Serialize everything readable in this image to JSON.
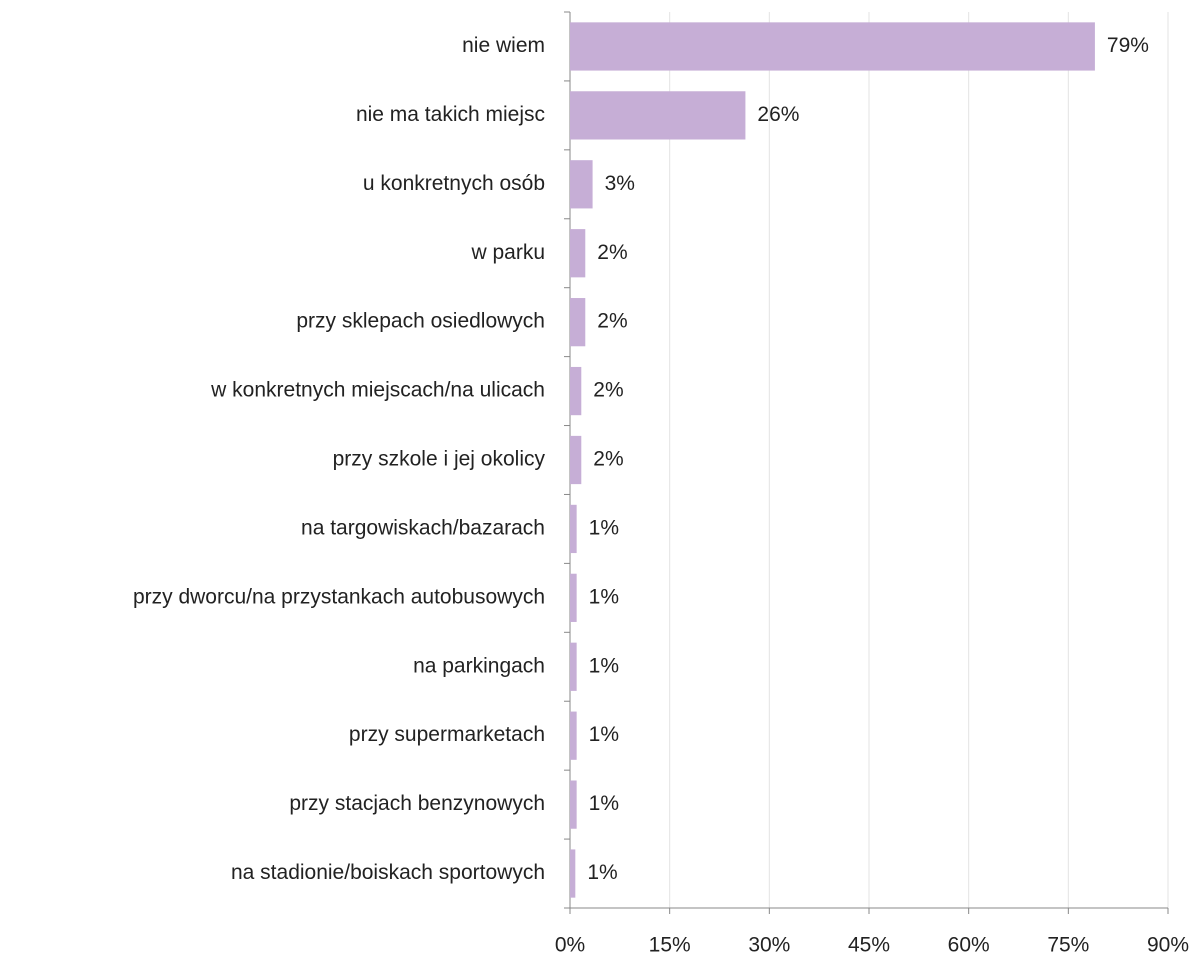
{
  "chart_data": {
    "type": "barh",
    "categories": [
      "nie wiem",
      "nie ma takich miejsc",
      "u konkretnych osób",
      "w parku",
      "przy sklepach osiedlowych",
      "w konkretnych miejscach/na ulicach",
      "przy szkole i jej okolicy",
      "na targowiskach/bazarach",
      "przy dworcu/na przystankach autobusowych",
      "na parkingach",
      "przy supermarketach",
      "przy stacjach benzynowych",
      "na stadionie/boiskach sportowych"
    ],
    "values": [
      79,
      26.4,
      3.4,
      2.3,
      2.3,
      1.7,
      1.7,
      1.0,
      1.0,
      1.0,
      1.0,
      1.0,
      0.8
    ],
    "value_labels": [
      "79%",
      "26%",
      "3%",
      "2%",
      "2%",
      "2%",
      "2%",
      "1%",
      "1%",
      "1%",
      "1%",
      "1%",
      "1%"
    ],
    "color": "#c6aed6",
    "xlim": [
      0,
      90
    ],
    "xticks": [
      {
        "value": 0,
        "label": "0%"
      },
      {
        "value": 15,
        "label": "15%"
      },
      {
        "value": 30,
        "label": "30%"
      },
      {
        "value": 45,
        "label": "45%"
      },
      {
        "value": 60,
        "label": "60%"
      },
      {
        "value": 75,
        "label": "75%"
      },
      {
        "value": 90,
        "label": "90%"
      }
    ],
    "grid": true
  }
}
